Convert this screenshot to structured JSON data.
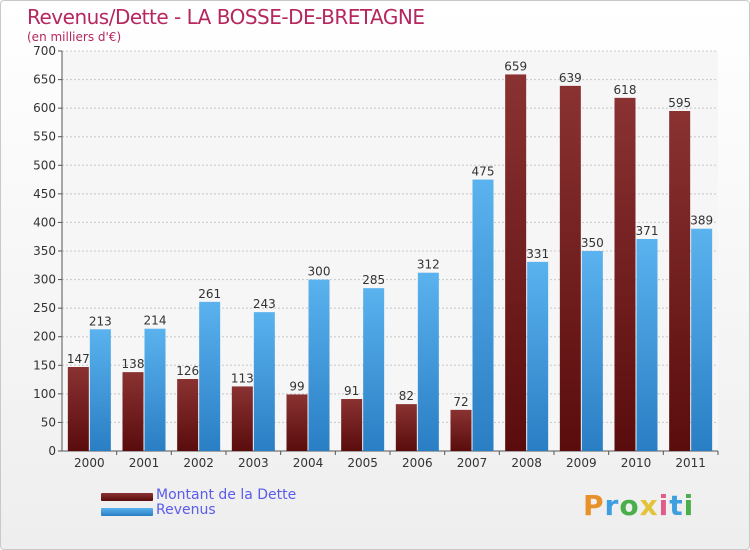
{
  "chart_data": {
    "type": "bar",
    "title": "Revenus/Dette - LA BOSSE-DE-BRETAGNE",
    "subtitle": "(en milliers d'€)",
    "categories": [
      "2000",
      "2001",
      "2002",
      "2003",
      "2004",
      "2005",
      "2006",
      "2007",
      "2008",
      "2009",
      "2010",
      "2011"
    ],
    "series": [
      {
        "name": "Montant de la Dette",
        "color": "#7a1e1e",
        "values": [
          147,
          138,
          126,
          113,
          99,
          91,
          82,
          72,
          659,
          639,
          618,
          595
        ]
      },
      {
        "name": "Revenus",
        "color": "#3fa0e8",
        "values": [
          213,
          214,
          261,
          243,
          300,
          285,
          312,
          475,
          331,
          350,
          371,
          389
        ]
      }
    ],
    "ylim": [
      0,
      700
    ],
    "yticks": [
      0,
      50,
      100,
      150,
      200,
      250,
      300,
      350,
      400,
      450,
      500,
      550,
      600,
      650,
      700
    ],
    "grid": true,
    "legend_position": "bottom-left"
  },
  "logo": {
    "letters": [
      "P",
      "r",
      "o",
      "x",
      "i",
      "t",
      "i"
    ],
    "colors": [
      "#e8912a",
      "#3f9ee0",
      "#4aae4a",
      "#e2c33a",
      "#e05a8a",
      "#3f9ee0",
      "#4aae4a"
    ]
  }
}
